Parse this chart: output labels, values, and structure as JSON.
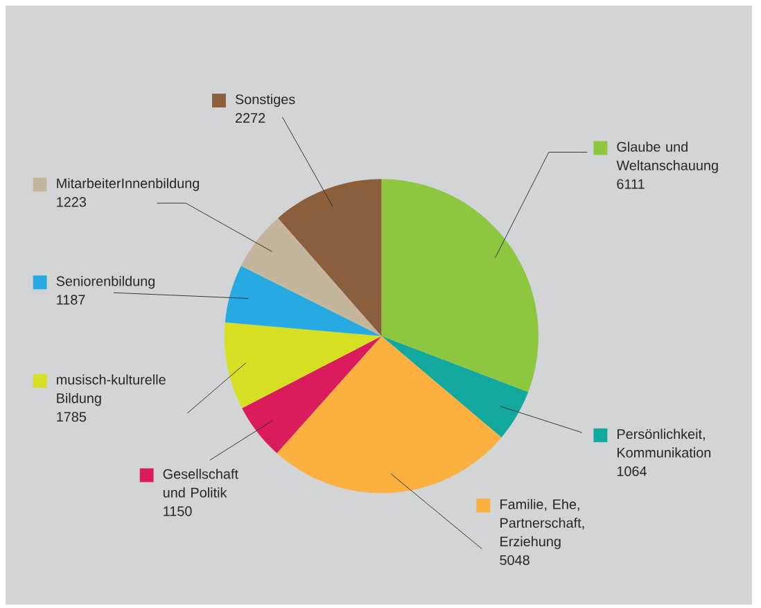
{
  "chart_data": {
    "type": "pie",
    "categories": [
      "Glaube und Weltanschauung",
      "Persönlichkeit, Kommunikation",
      "Familie, Ehe, Partnerschaft, Erziehung",
      "Gesellschaft und Politik",
      "musisch-kulturelle Bildung",
      "Seniorenbildung",
      "MitarbeiterInnenbildung",
      "Sonstiges"
    ],
    "values": [
      6111,
      1064,
      5048,
      1150,
      1785,
      1187,
      1223,
      2272
    ],
    "colors": [
      "#8dc63f",
      "#13a89e",
      "#fbb040",
      "#da1c5c",
      "#d7df23",
      "#27aae1",
      "#c4b59d",
      "#8b5e3c"
    ],
    "data_labels": true,
    "legend": "right"
  }
}
